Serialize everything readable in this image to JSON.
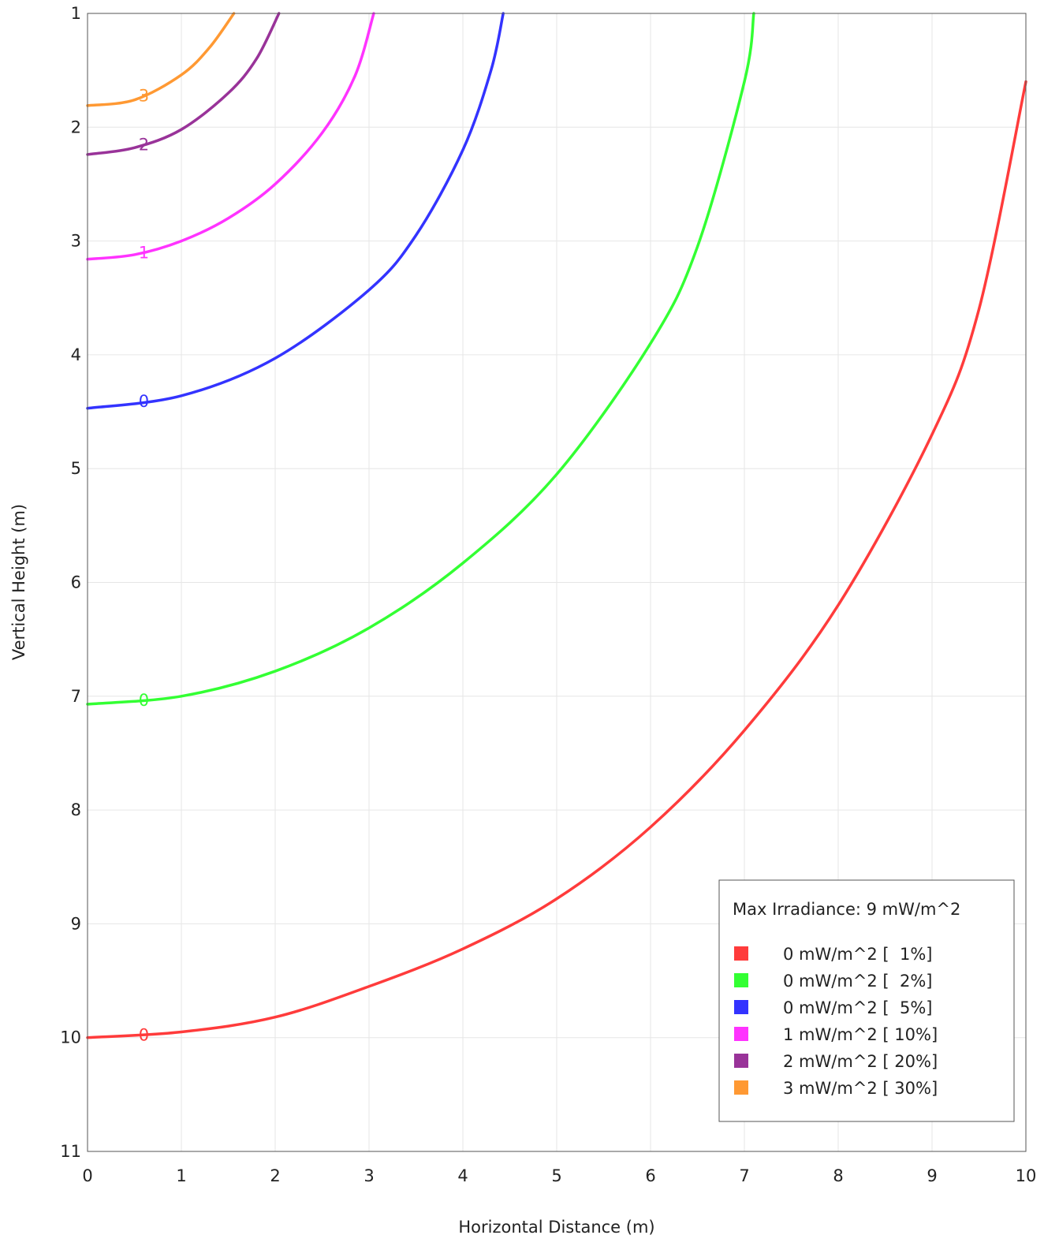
{
  "chart_data": {
    "type": "line",
    "xlabel": "Horizontal Distance (m)",
    "ylabel": "Vertical Height (m)",
    "xlim": [
      0,
      10
    ],
    "ylim": [
      1,
      11
    ],
    "y_axis_inverted": true,
    "x_ticks": [
      "0",
      "1",
      "2",
      "3",
      "4",
      "5",
      "6",
      "7",
      "8",
      "9",
      "10"
    ],
    "y_ticks": [
      "1",
      "2",
      "3",
      "4",
      "5",
      "6",
      "7",
      "8",
      "9",
      "10",
      "11"
    ],
    "grid": true,
    "legend_position": "bottom-right",
    "legend": {
      "title": "Max Irradiance: 9 mW/m^2",
      "entries": [
        {
          "label": "0 mW/m^2 [  1%]",
          "color": "#ff3b3b"
        },
        {
          "label": "0 mW/m^2 [  2%]",
          "color": "#33ff33"
        },
        {
          "label": "0 mW/m^2 [  5%]",
          "color": "#3333ff"
        },
        {
          "label": "1 mW/m^2 [ 10%]",
          "color": "#ff33ff"
        },
        {
          "label": "2 mW/m^2 [ 20%]",
          "color": "#993399"
        },
        {
          "label": "3 mW/m^2 [ 30%]",
          "color": "#ff9933"
        }
      ]
    },
    "series": [
      {
        "color": "#ff3b3b",
        "inline_label": "0",
        "x": [
          0,
          1,
          2,
          3,
          4,
          5,
          6,
          7,
          8,
          9,
          9.5,
          10
        ],
        "y": [
          10.0,
          9.95,
          9.82,
          9.55,
          9.22,
          8.78,
          8.15,
          7.3,
          6.2,
          4.7,
          3.6,
          1.6
        ]
      },
      {
        "color": "#33ff33",
        "inline_label": "0",
        "x": [
          0,
          1,
          2,
          3,
          4,
          5,
          6,
          6.5,
          7.0,
          7.1
        ],
        "y": [
          7.07,
          7.0,
          6.78,
          6.4,
          5.83,
          5.05,
          3.9,
          3.05,
          1.6,
          1.0
        ]
      },
      {
        "color": "#3333ff",
        "inline_label": "0",
        "x": [
          0,
          1,
          2,
          3,
          3.5,
          4.0,
          4.3,
          4.43
        ],
        "y": [
          4.47,
          4.36,
          4.03,
          3.43,
          2.95,
          2.2,
          1.5,
          1.0
        ]
      },
      {
        "color": "#ff33ff",
        "inline_label": "1",
        "x": [
          0,
          0.5,
          1,
          1.5,
          2.0,
          2.5,
          2.85,
          3.05
        ],
        "y": [
          3.16,
          3.12,
          3.0,
          2.8,
          2.5,
          2.05,
          1.55,
          1.0
        ]
      },
      {
        "color": "#993399",
        "inline_label": "2",
        "x": [
          0,
          0.5,
          1.0,
          1.5,
          1.8,
          2.04
        ],
        "y": [
          2.24,
          2.18,
          2.02,
          1.7,
          1.4,
          1.0
        ]
      },
      {
        "color": "#ff9933",
        "inline_label": "3",
        "x": [
          0,
          0.5,
          1.0,
          1.3,
          1.56
        ],
        "y": [
          1.81,
          1.76,
          1.54,
          1.3,
          1.0
        ]
      }
    ]
  }
}
